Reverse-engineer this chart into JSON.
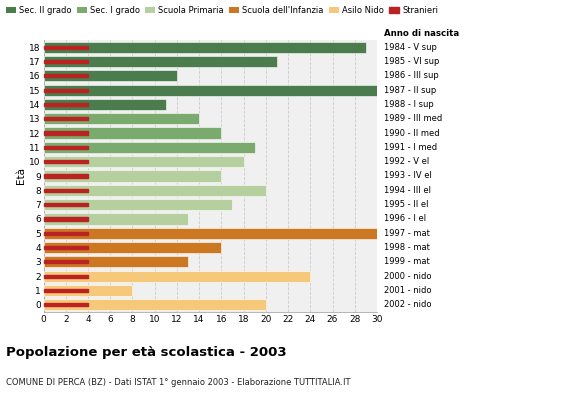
{
  "ages_top_to_bottom": [
    18,
    17,
    16,
    15,
    14,
    13,
    12,
    11,
    10,
    9,
    8,
    7,
    6,
    5,
    4,
    3,
    2,
    1,
    0
  ],
  "years_top_to_bottom": [
    "1984 - V sup",
    "1985 - VI sup",
    "1986 - III sup",
    "1987 - II sup",
    "1988 - I sup",
    "1989 - III med",
    "1990 - II med",
    "1991 - I med",
    "1992 - V el",
    "1993 - IV el",
    "1994 - III el",
    "1995 - II el",
    "1996 - I el",
    "1997 - mat",
    "1998 - mat",
    "1999 - mat",
    "2000 - nido",
    "2001 - nido",
    "2002 - nido"
  ],
  "values_top_to_bottom": [
    29,
    21,
    12,
    30,
    11,
    14,
    16,
    19,
    18,
    16,
    20,
    17,
    13,
    30,
    16,
    13,
    24,
    8,
    20
  ],
  "bar_colors_top_to_bottom": [
    "#4a7c4e",
    "#4a7c4e",
    "#4a7c4e",
    "#4a7c4e",
    "#4a7c4e",
    "#7aaa6e",
    "#7aaa6e",
    "#7aaa6e",
    "#b5cf9e",
    "#b5cf9e",
    "#b5cf9e",
    "#b5cf9e",
    "#b5cf9e",
    "#cc7722",
    "#cc7722",
    "#cc7722",
    "#f5c87a",
    "#f5c87a",
    "#f5c87a"
  ],
  "stranger_color": "#bb2222",
  "grid_color": "#cccccc",
  "bg_color": "#ffffff",
  "plot_bg_color": "#f0f0f0",
  "title": "Popolazione per età scolastica - 2003",
  "subtitle": "COMUNE DI PERCA (BZ) - Dati ISTAT 1° gennaio 2003 - Elaborazione TUTTITALIA.IT",
  "ylabel": "Età",
  "xlim": [
    0,
    30
  ],
  "xticks": [
    0,
    2,
    4,
    6,
    8,
    10,
    12,
    14,
    16,
    18,
    20,
    22,
    24,
    26,
    28,
    30
  ],
  "legend_labels": [
    "Sec. II grado",
    "Sec. I grado",
    "Scuola Primaria",
    "Scuola dell'Infanzia",
    "Asilo Nido",
    "Stranieri"
  ],
  "legend_colors": [
    "#4a7c4e",
    "#7aaa6e",
    "#b5cf9e",
    "#cc7722",
    "#f5c87a",
    "#bb2222"
  ]
}
